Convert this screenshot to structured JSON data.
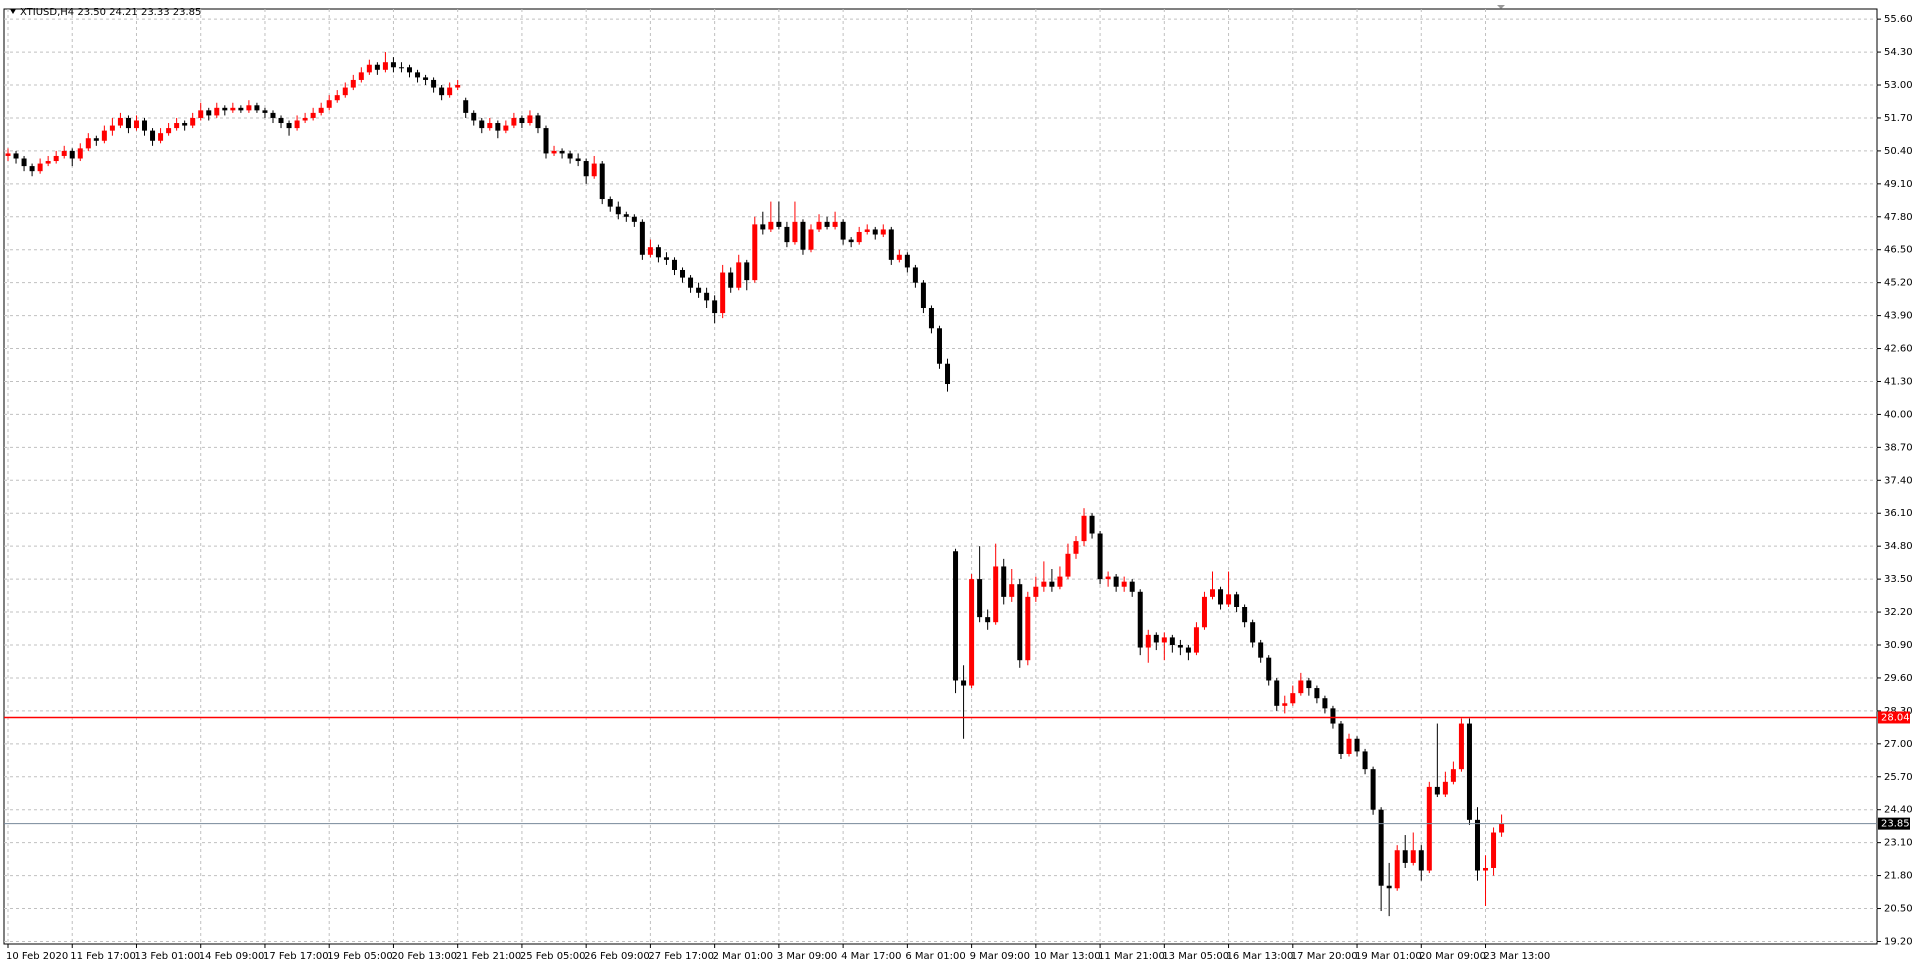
{
  "chart_data": {
    "type": "candlestick",
    "title": "XTIUSD,H4 23.50 24.21 23.33 23.85",
    "up_color": "#ff0000",
    "down_color": "#000000",
    "grid": true,
    "ylim": [
      19.1,
      56.0
    ],
    "yticks": [
      {
        "value": 55.6,
        "label": "55.60"
      },
      {
        "value": 54.3,
        "label": "54.30"
      },
      {
        "value": 53,
        "label": "53.00"
      },
      {
        "value": 51.7,
        "label": "51.70"
      },
      {
        "value": 50.4,
        "label": "50.40"
      },
      {
        "value": 49.1,
        "label": "49.10"
      },
      {
        "value": 47.8,
        "label": "47.80"
      },
      {
        "value": 46.5,
        "label": "46.50"
      },
      {
        "value": 45.2,
        "label": "45.20"
      },
      {
        "value": 43.9,
        "label": "43.90"
      },
      {
        "value": 42.6,
        "label": "42.60"
      },
      {
        "value": 41.3,
        "label": "41.30"
      },
      {
        "value": 40,
        "label": "40.00"
      },
      {
        "value": 38.7,
        "label": "38.70"
      },
      {
        "value": 37.4,
        "label": "37.40"
      },
      {
        "value": 36.1,
        "label": "36.10"
      },
      {
        "value": 34.8,
        "label": "34.80"
      },
      {
        "value": 33.5,
        "label": "33.50"
      },
      {
        "value": 32.2,
        "label": "32.20"
      },
      {
        "value": 30.9,
        "label": "30.90"
      },
      {
        "value": 29.6,
        "label": "29.60"
      },
      {
        "value": 28.3,
        "label": "28.30"
      },
      {
        "value": 27,
        "label": "27.00"
      },
      {
        "value": 25.7,
        "label": "25.70"
      },
      {
        "value": 24.4,
        "label": "24.40"
      },
      {
        "value": 23.1,
        "label": "23.10"
      },
      {
        "value": 21.8,
        "label": "21.80"
      },
      {
        "value": 20.5,
        "label": "20.50"
      },
      {
        "value": 19.2,
        "label": "19.20"
      }
    ],
    "xticks": [
      "10 Feb 2020",
      "11 Feb 17:00",
      "13 Feb 01:00",
      "14 Feb 09:00",
      "17 Feb 17:00",
      "19 Feb 05:00",
      "20 Feb 13:00",
      "21 Feb 21:00",
      "25 Feb 05:00",
      "26 Feb 09:00",
      "27 Feb 17:00",
      "2 Mar 01:00",
      "3 Mar 09:00",
      "4 Mar 17:00",
      "6 Mar 01:00",
      "9 Mar 09:00",
      "10 Mar 13:00",
      "11 Mar 21:00",
      "13 Mar 05:00",
      "16 Mar 13:00",
      "17 Mar 20:00",
      "19 Mar 01:00",
      "20 Mar 09:00",
      "23 Mar 13:00"
    ],
    "level": {
      "value": 28.04,
      "color": "#ff0000"
    },
    "price_line": {
      "value": 23.85,
      "color": "#778899"
    },
    "open": [
      50.2,
      50.3,
      50.1,
      49.8,
      49.6,
      49.9,
      50.0,
      50.2,
      50.4,
      50.1,
      50.5,
      50.9,
      50.8,
      51.2,
      51.4,
      51.7,
      51.3,
      51.6,
      51.2,
      50.8,
      51.1,
      51.3,
      51.5,
      51.4,
      51.7,
      52.0,
      51.8,
      52.1,
      52.0,
      52.1,
      52.0,
      52.2,
      52.0,
      51.9,
      51.7,
      51.5,
      51.3,
      51.6,
      51.7,
      51.9,
      52.1,
      52.4,
      52.6,
      52.9,
      53.2,
      53.5,
      53.8,
      53.6,
      53.9,
      53.7,
      53.7,
      53.5,
      53.3,
      53.2,
      52.9,
      52.6,
      52.9,
      52.4,
      51.9,
      51.6,
      51.3,
      51.5,
      51.2,
      51.4,
      51.7,
      51.5,
      51.8,
      51.3,
      50.3,
      50.4,
      50.3,
      50.1,
      50.0,
      49.4,
      49.9,
      48.5,
      48.2,
      47.9,
      47.8,
      47.6,
      46.3,
      46.6,
      46.2,
      46.1,
      45.7,
      45.4,
      45.0,
      44.8,
      44.5,
      44.0,
      45.6,
      45.0,
      46.0,
      45.3,
      47.5,
      47.3,
      47.6,
      47.4,
      46.8,
      47.6,
      46.5,
      47.3,
      47.6,
      47.4,
      47.6,
      46.9,
      46.8,
      47.2,
      47.3,
      47.1,
      47.3,
      46.1,
      46.3,
      45.8,
      45.2,
      44.2,
      43.4,
      42.0,
      34.6,
      29.5,
      29.3,
      33.5,
      32.0,
      31.8,
      34.0,
      32.8,
      33.3,
      30.3,
      32.8,
      33.2,
      33.4,
      33.2,
      33.6,
      34.5,
      35.0,
      36.0,
      35.3,
      33.5,
      33.6,
      33.2,
      33.4,
      33.0,
      30.8,
      31.3,
      31.0,
      31.2,
      30.9,
      30.8,
      30.6,
      31.6,
      32.8,
      33.1,
      32.5,
      32.9,
      32.4,
      31.8,
      31.0,
      30.4,
      29.5,
      28.5,
      28.6,
      29.0,
      29.5,
      29.2,
      28.8,
      28.4,
      27.8,
      26.6,
      27.2,
      26.7,
      26.0,
      24.4,
      21.4,
      21.3,
      22.8,
      22.3,
      22.8,
      22.0,
      25.3,
      25.0,
      25.5,
      26.0,
      27.8,
      24.0,
      22.0,
      22.1,
      23.5
    ],
    "high": [
      50.5,
      50.4,
      50.2,
      49.9,
      50.1,
      50.2,
      50.4,
      50.6,
      50.5,
      50.7,
      51.1,
      51.0,
      51.4,
      51.7,
      51.9,
      51.8,
      51.8,
      51.7,
      51.3,
      51.3,
      51.5,
      51.7,
      51.6,
      51.9,
      52.3,
      52.1,
      52.3,
      52.2,
      52.3,
      52.2,
      52.4,
      52.3,
      52.1,
      52.0,
      51.8,
      51.6,
      51.8,
      51.9,
      52.1,
      52.3,
      52.6,
      52.8,
      53.1,
      53.4,
      53.7,
      54.0,
      53.9,
      54.3,
      54.1,
      53.9,
      53.8,
      53.6,
      53.4,
      53.3,
      53.0,
      53.1,
      53.2,
      52.5,
      52.0,
      51.7,
      51.7,
      51.6,
      51.6,
      51.9,
      51.8,
      52.0,
      51.9,
      51.4,
      50.6,
      50.5,
      50.4,
      50.3,
      50.1,
      50.2,
      50.0,
      48.6,
      48.4,
      48.0,
      47.9,
      47.7,
      46.9,
      46.7,
      46.4,
      46.2,
      45.8,
      45.5,
      45.2,
      45.0,
      44.7,
      45.9,
      45.8,
      46.3,
      46.1,
      47.8,
      48.0,
      48.4,
      48.4,
      47.6,
      48.4,
      47.7,
      47.5,
      47.9,
      47.8,
      48.0,
      47.7,
      47.0,
      47.4,
      47.5,
      47.4,
      47.5,
      47.4,
      46.5,
      46.4,
      45.9,
      45.3,
      44.3,
      43.5,
      42.2,
      34.7,
      30.1,
      33.7,
      34.8,
      32.3,
      34.9,
      34.3,
      33.9,
      33.5,
      33.0,
      33.6,
      34.2,
      33.9,
      34.0,
      34.9,
      35.2,
      36.3,
      36.1,
      35.4,
      33.8,
      33.7,
      33.6,
      33.5,
      33.1,
      31.5,
      31.4,
      31.4,
      31.3,
      31.1,
      30.9,
      31.8,
      33.0,
      33.8,
      33.2,
      33.8,
      33.0,
      32.5,
      31.9,
      31.1,
      30.5,
      29.6,
      28.9,
      29.3,
      29.8,
      29.6,
      29.3,
      28.9,
      28.5,
      27.9,
      27.4,
      27.3,
      26.8,
      26.1,
      24.5,
      22.3,
      23.0,
      23.4,
      23.5,
      23.0,
      25.5,
      27.8,
      25.9,
      26.3,
      28.0,
      28.0,
      24.5,
      22.6,
      23.7,
      24.21
    ],
    "low": [
      50.0,
      49.9,
      49.6,
      49.4,
      49.5,
      49.8,
      49.9,
      50.1,
      49.8,
      50.0,
      50.4,
      50.6,
      50.7,
      51.0,
      51.3,
      51.1,
      51.2,
      51.0,
      50.6,
      50.7,
      51.0,
      51.2,
      51.2,
      51.3,
      51.6,
      51.6,
      51.7,
      51.8,
      51.9,
      51.9,
      51.9,
      51.9,
      51.7,
      51.5,
      51.3,
      51.0,
      51.2,
      51.5,
      51.6,
      51.8,
      52.0,
      52.3,
      52.5,
      52.8,
      53.1,
      53.4,
      53.4,
      53.5,
      53.5,
      53.5,
      53.3,
      53.1,
      53.0,
      52.7,
      52.4,
      52.5,
      52.8,
      51.7,
      51.4,
      51.1,
      51.2,
      50.9,
      51.1,
      51.3,
      51.3,
      51.4,
      51.1,
      50.1,
      50.2,
      50.1,
      49.9,
      49.8,
      49.1,
      49.3,
      48.3,
      48.0,
      47.7,
      47.6,
      47.4,
      46.1,
      46.2,
      46.0,
      45.9,
      45.5,
      45.2,
      44.8,
      44.6,
      44.2,
      43.6,
      43.8,
      44.8,
      44.9,
      44.9,
      45.2,
      47.1,
      47.2,
      47.3,
      46.6,
      46.7,
      46.3,
      46.4,
      47.2,
      47.3,
      47.3,
      46.7,
      46.6,
      46.7,
      47.1,
      46.9,
      47.0,
      45.9,
      46.0,
      45.6,
      45.0,
      44.0,
      43.2,
      41.8,
      40.9,
      29.0,
      27.2,
      29.2,
      31.8,
      31.5,
      31.7,
      32.5,
      32.6,
      30.0,
      30.1,
      32.6,
      33.0,
      33.0,
      33.1,
      33.5,
      34.3,
      34.8,
      35.1,
      33.3,
      33.2,
      33.0,
      33.0,
      32.8,
      30.5,
      30.2,
      30.7,
      30.3,
      30.6,
      30.5,
      30.3,
      30.5,
      31.5,
      32.7,
      32.3,
      32.4,
      32.2,
      31.6,
      30.8,
      30.2,
      29.3,
      28.3,
      28.2,
      28.5,
      28.9,
      28.9,
      28.6,
      28.2,
      27.6,
      26.4,
      26.5,
      26.5,
      25.8,
      24.2,
      20.4,
      20.2,
      21.2,
      22.1,
      22.2,
      21.6,
      21.9,
      24.9,
      24.9,
      25.4,
      25.9,
      23.8,
      21.6,
      20.6,
      21.8,
      23.33
    ],
    "close": [
      50.3,
      50.1,
      49.8,
      49.6,
      49.9,
      50.0,
      50.2,
      50.4,
      50.1,
      50.5,
      50.9,
      50.8,
      51.2,
      51.4,
      51.7,
      51.3,
      51.6,
      51.2,
      50.8,
      51.1,
      51.3,
      51.5,
      51.4,
      51.7,
      52.0,
      51.8,
      52.1,
      52.0,
      52.1,
      52.0,
      52.2,
      52.0,
      51.9,
      51.7,
      51.5,
      51.3,
      51.6,
      51.7,
      51.9,
      52.1,
      52.4,
      52.6,
      52.9,
      53.2,
      53.5,
      53.8,
      53.6,
      53.9,
      53.7,
      53.7,
      53.5,
      53.3,
      53.2,
      52.9,
      52.6,
      52.9,
      53.0,
      51.9,
      51.6,
      51.3,
      51.5,
      51.2,
      51.4,
      51.7,
      51.5,
      51.8,
      51.3,
      50.3,
      50.4,
      50.3,
      50.1,
      50.0,
      49.4,
      49.9,
      48.5,
      48.2,
      47.9,
      47.8,
      47.6,
      46.3,
      46.6,
      46.2,
      46.1,
      45.7,
      45.4,
      45.0,
      44.8,
      44.5,
      44.0,
      45.6,
      45.0,
      46.0,
      45.3,
      47.5,
      47.3,
      47.6,
      47.4,
      46.8,
      47.6,
      46.5,
      47.3,
      47.6,
      47.4,
      47.6,
      46.9,
      46.8,
      47.2,
      47.3,
      47.1,
      47.3,
      46.1,
      46.3,
      45.8,
      45.2,
      44.2,
      43.4,
      42.0,
      41.2,
      29.5,
      29.3,
      33.5,
      32.0,
      31.8,
      34.0,
      32.8,
      33.3,
      30.3,
      32.8,
      33.2,
      33.4,
      33.2,
      33.6,
      34.5,
      35.0,
      36.0,
      35.3,
      33.5,
      33.6,
      33.2,
      33.4,
      33.0,
      30.8,
      31.3,
      31.0,
      31.2,
      30.9,
      30.8,
      30.6,
      31.6,
      32.8,
      33.1,
      32.5,
      32.9,
      32.4,
      31.8,
      31.0,
      30.4,
      29.5,
      28.5,
      28.6,
      29.0,
      29.5,
      29.2,
      28.8,
      28.4,
      27.8,
      26.6,
      27.2,
      26.7,
      26.0,
      24.4,
      21.4,
      21.3,
      22.8,
      22.3,
      22.8,
      22.0,
      25.3,
      25.0,
      25.5,
      26.0,
      27.8,
      24.0,
      22.0,
      22.1,
      23.5,
      23.85
    ]
  }
}
